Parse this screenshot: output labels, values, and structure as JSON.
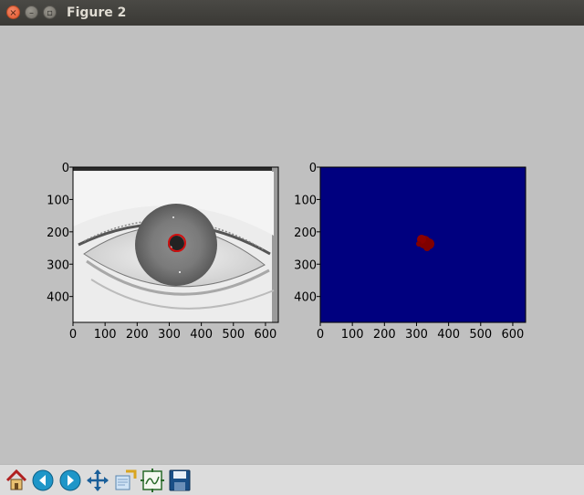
{
  "window": {
    "title": "Figure 2",
    "close_glyph": "×",
    "minimize_glyph": "–",
    "maximize_glyph": "▫"
  },
  "plots": [
    {
      "kind": "grayscale eye image with red circle",
      "x_ticks": [
        "0",
        "100",
        "200",
        "300",
        "400",
        "500",
        "600"
      ],
      "y_ticks": [
        "0",
        "100",
        "200",
        "300",
        "400"
      ],
      "xlim": [
        0,
        640
      ],
      "ylim": [
        480,
        0
      ],
      "circle_center": [
        320,
        235
      ],
      "circle_radius": 26,
      "circle_color": "#d01010"
    },
    {
      "kind": "mask image",
      "x_ticks": [
        "0",
        "100",
        "200",
        "300",
        "400",
        "500",
        "600"
      ],
      "y_ticks": [
        "0",
        "100",
        "200",
        "300",
        "400"
      ],
      "xlim": [
        0,
        640
      ],
      "ylim": [
        480,
        0
      ],
      "background_color": "#00007f",
      "blob_center": [
        325,
        235
      ],
      "blob_color": "#800000"
    }
  ],
  "toolbar": {
    "buttons": [
      {
        "name": "home-button",
        "icon": "home-icon"
      },
      {
        "name": "back-button",
        "icon": "arrow-left-icon"
      },
      {
        "name": "forward-button",
        "icon": "arrow-right-icon"
      },
      {
        "name": "pan-button",
        "icon": "move-icon"
      },
      {
        "name": "zoom-button",
        "icon": "zoom-rect-icon"
      },
      {
        "name": "configure-subplots-button",
        "icon": "subplots-icon"
      },
      {
        "name": "save-button",
        "icon": "floppy-disk-icon"
      }
    ]
  }
}
